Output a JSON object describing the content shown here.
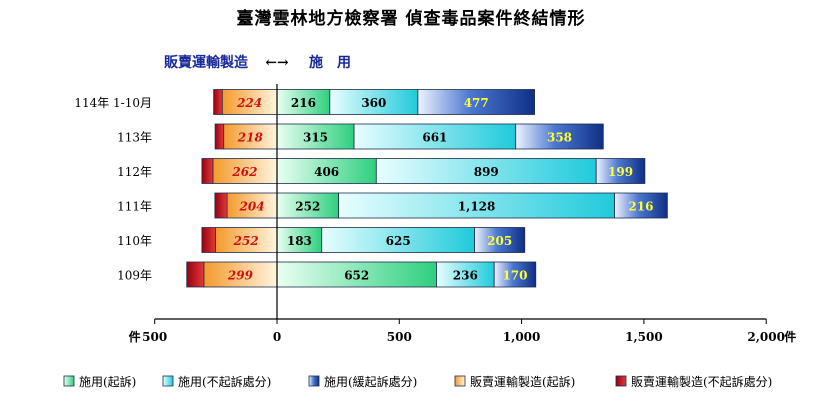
{
  "page": {
    "title": "臺灣雲林地方檢察署 偵查毒品案件終結情形"
  },
  "chart_data": {
    "type": "bar",
    "orientation": "horizontal-diverging",
    "title": "臺灣雲林地方檢察署 偵查毒品案件終結情形",
    "direction_labels": {
      "left": "販賣運輸製造",
      "arrow": "←→",
      "right": "施　用"
    },
    "categories": [
      "114年 1-10月",
      "113年",
      "112年",
      "111年",
      "110年",
      "109年"
    ],
    "x_axis": {
      "range": [
        -500,
        2000
      ],
      "ticks": [
        -500,
        0,
        500,
        1000,
        1500,
        2000
      ],
      "tick_labels": [
        "500",
        "0",
        "500",
        "1,000",
        "1,500",
        "2,000"
      ],
      "left_unit": "件",
      "right_unit": "件"
    },
    "series": [
      {
        "name": "施用(起訴)",
        "side": "right",
        "color": "#3dd68c",
        "values": [
          216,
          315,
          406,
          252,
          183,
          652
        ],
        "labels": [
          "216",
          "315",
          "406",
          "252",
          "183",
          "652"
        ]
      },
      {
        "name": "施用(不起訴處分)",
        "side": "right",
        "color": "#2ad2e0",
        "values": [
          360,
          661,
          899,
          1128,
          625,
          236
        ],
        "labels": [
          "360",
          "661",
          "899",
          "1,128",
          "625",
          "236"
        ]
      },
      {
        "name": "施用(緩起訴處分)",
        "side": "right",
        "color": "#1a47a8",
        "values": [
          477,
          358,
          199,
          216,
          205,
          170
        ],
        "labels": [
          "477",
          "358",
          "199",
          "216",
          "205",
          "170"
        ]
      },
      {
        "name": "販賣運輸製造(起訴)",
        "side": "left",
        "color": "#f7a33c",
        "values": [
          224,
          218,
          262,
          204,
          252,
          299
        ],
        "labels": [
          "224",
          "218",
          "262",
          "204",
          "252",
          "299"
        ]
      },
      {
        "name": "販賣運輸製造(不起訴處分)",
        "side": "left",
        "color": "#c0101c",
        "values": [
          35,
          35,
          45,
          50,
          55,
          70
        ],
        "labels": []
      }
    ],
    "legend_position": "bottom",
    "grid": false
  }
}
